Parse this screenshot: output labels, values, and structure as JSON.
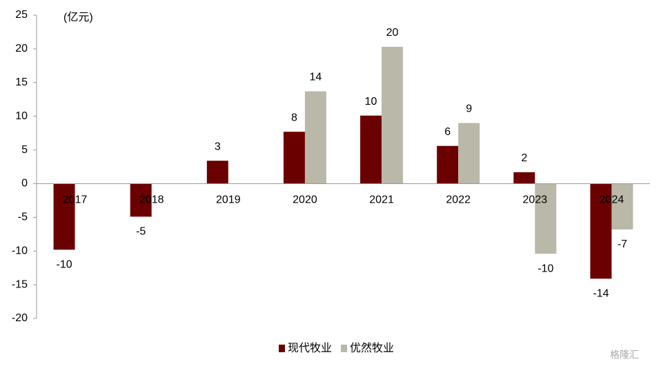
{
  "chart_data": {
    "type": "bar",
    "unit_label": "(亿元)",
    "categories": [
      "2017",
      "2018",
      "2019",
      "2020",
      "2021",
      "2022",
      "2023",
      "2024"
    ],
    "series": [
      {
        "name": "现代牧业",
        "color": "#6b0000",
        "values": [
          -9.8,
          -4.9,
          3.4,
          7.7,
          10.1,
          5.6,
          1.7,
          -14.1
        ],
        "value_labels": [
          "-10",
          "-5",
          "3",
          "8",
          "10",
          "6",
          "2",
          "-14"
        ]
      },
      {
        "name": "优然牧业",
        "color": "#bab8a8",
        "values": [
          null,
          null,
          null,
          13.7,
          20.3,
          9.0,
          -10.4,
          -6.8
        ],
        "value_labels": [
          null,
          null,
          null,
          "14",
          "20",
          "9",
          "-10",
          "-7"
        ]
      }
    ],
    "ylim": [
      -20,
      25
    ],
    "yticks": [
      -20,
      -15,
      -10,
      -5,
      0,
      5,
      10,
      15,
      20,
      25
    ],
    "grid": false,
    "legend": "bottom",
    "watermark": "格隆汇"
  }
}
